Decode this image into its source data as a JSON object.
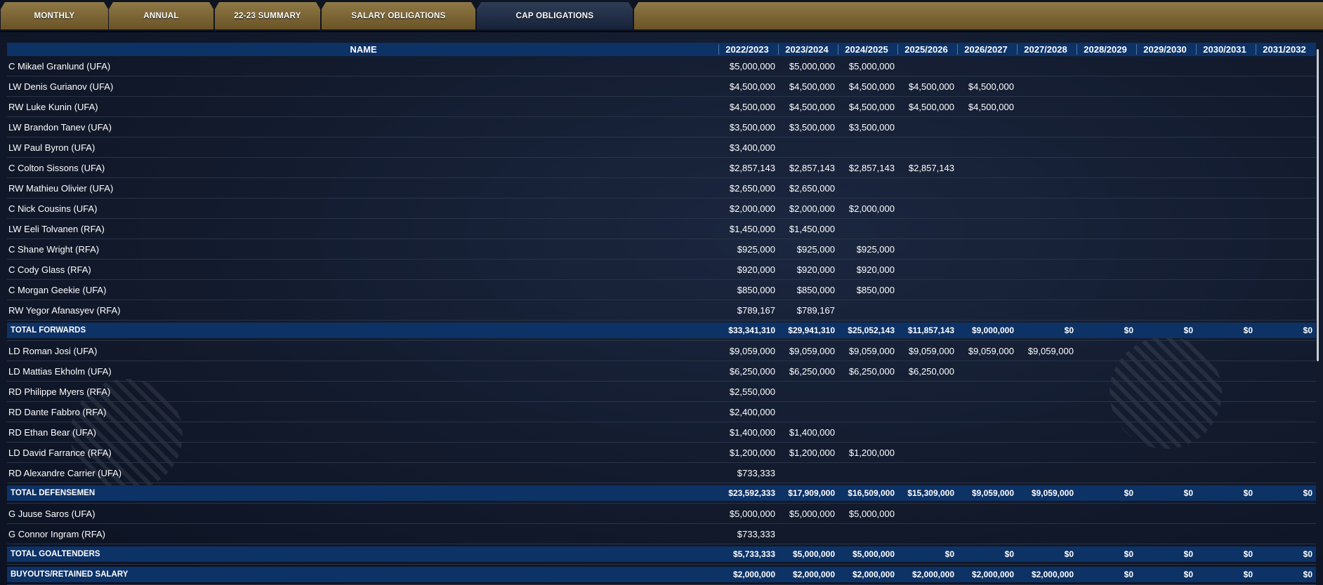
{
  "tabs": [
    {
      "label": "MONTHLY",
      "active": false
    },
    {
      "label": "ANNUAL",
      "active": false
    },
    {
      "label": "22-23 SUMMARY",
      "active": false
    },
    {
      "label": "SALARY OBLIGATIONS",
      "active": false
    },
    {
      "label": "CAP OBLIGATIONS",
      "active": true
    }
  ],
  "colors": {
    "tab_gold": "#8e7846",
    "header_blue": "#0d3266",
    "background": "#121a2c"
  },
  "table": {
    "headers": [
      "NAME",
      "2022/2023",
      "2023/2024",
      "2024/2025",
      "2025/2026",
      "2026/2027",
      "2027/2028",
      "2028/2029",
      "2029/2030",
      "2030/2031",
      "2031/2032"
    ],
    "rows": [
      {
        "type": "player",
        "name": "C Mikael Granlund (UFA)",
        "values": [
          "$5,000,000",
          "$5,000,000",
          "$5,000,000",
          "",
          "",
          "",
          "",
          "",
          "",
          ""
        ]
      },
      {
        "type": "player",
        "name": "LW Denis Gurianov (UFA)",
        "values": [
          "$4,500,000",
          "$4,500,000",
          "$4,500,000",
          "$4,500,000",
          "$4,500,000",
          "",
          "",
          "",
          "",
          ""
        ]
      },
      {
        "type": "player",
        "name": "RW Luke Kunin (UFA)",
        "values": [
          "$4,500,000",
          "$4,500,000",
          "$4,500,000",
          "$4,500,000",
          "$4,500,000",
          "",
          "",
          "",
          "",
          ""
        ]
      },
      {
        "type": "player",
        "name": "LW Brandon Tanev (UFA)",
        "values": [
          "$3,500,000",
          "$3,500,000",
          "$3,500,000",
          "",
          "",
          "",
          "",
          "",
          "",
          ""
        ]
      },
      {
        "type": "player",
        "name": "LW Paul Byron (UFA)",
        "values": [
          "$3,400,000",
          "",
          "",
          "",
          "",
          "",
          "",
          "",
          "",
          ""
        ]
      },
      {
        "type": "player",
        "name": "C Colton Sissons (UFA)",
        "values": [
          "$2,857,143",
          "$2,857,143",
          "$2,857,143",
          "$2,857,143",
          "",
          "",
          "",
          "",
          "",
          ""
        ]
      },
      {
        "type": "player",
        "name": "RW Mathieu Olivier (UFA)",
        "values": [
          "$2,650,000",
          "$2,650,000",
          "",
          "",
          "",
          "",
          "",
          "",
          "",
          ""
        ]
      },
      {
        "type": "player",
        "name": "C Nick Cousins (UFA)",
        "values": [
          "$2,000,000",
          "$2,000,000",
          "$2,000,000",
          "",
          "",
          "",
          "",
          "",
          "",
          ""
        ]
      },
      {
        "type": "player",
        "name": "LW Eeli Tolvanen (RFA)",
        "values": [
          "$1,450,000",
          "$1,450,000",
          "",
          "",
          "",
          "",
          "",
          "",
          "",
          ""
        ]
      },
      {
        "type": "player",
        "name": "C Shane Wright (RFA)",
        "values": [
          "$925,000",
          "$925,000",
          "$925,000",
          "",
          "",
          "",
          "",
          "",
          "",
          ""
        ]
      },
      {
        "type": "player",
        "name": "C Cody Glass (RFA)",
        "values": [
          "$920,000",
          "$920,000",
          "$920,000",
          "",
          "",
          "",
          "",
          "",
          "",
          ""
        ]
      },
      {
        "type": "player",
        "name": "C Morgan Geekie (UFA)",
        "values": [
          "$850,000",
          "$850,000",
          "$850,000",
          "",
          "",
          "",
          "",
          "",
          "",
          ""
        ]
      },
      {
        "type": "player",
        "name": "RW Yegor Afanasyev (RFA)",
        "values": [
          "$789,167",
          "$789,167",
          "",
          "",
          "",
          "",
          "",
          "",
          "",
          ""
        ]
      },
      {
        "type": "total",
        "name": "TOTAL FORWARDS",
        "values": [
          "$33,341,310",
          "$29,941,310",
          "$25,052,143",
          "$11,857,143",
          "$9,000,000",
          "$0",
          "$0",
          "$0",
          "$0",
          "$0"
        ]
      },
      {
        "type": "player",
        "name": "LD Roman Josi (UFA)",
        "values": [
          "$9,059,000",
          "$9,059,000",
          "$9,059,000",
          "$9,059,000",
          "$9,059,000",
          "$9,059,000",
          "",
          "",
          "",
          ""
        ]
      },
      {
        "type": "player",
        "name": "LD Mattias Ekholm (UFA)",
        "values": [
          "$6,250,000",
          "$6,250,000",
          "$6,250,000",
          "$6,250,000",
          "",
          "",
          "",
          "",
          "",
          ""
        ]
      },
      {
        "type": "player",
        "name": "RD Philippe Myers (RFA)",
        "values": [
          "$2,550,000",
          "",
          "",
          "",
          "",
          "",
          "",
          "",
          "",
          ""
        ]
      },
      {
        "type": "player",
        "name": "RD Dante Fabbro (RFA)",
        "values": [
          "$2,400,000",
          "",
          "",
          "",
          "",
          "",
          "",
          "",
          "",
          ""
        ]
      },
      {
        "type": "player",
        "name": "RD Ethan Bear (UFA)",
        "values": [
          "$1,400,000",
          "$1,400,000",
          "",
          "",
          "",
          "",
          "",
          "",
          "",
          ""
        ]
      },
      {
        "type": "player",
        "name": "LD David Farrance (RFA)",
        "values": [
          "$1,200,000",
          "$1,200,000",
          "$1,200,000",
          "",
          "",
          "",
          "",
          "",
          "",
          ""
        ]
      },
      {
        "type": "player",
        "name": "RD Alexandre Carrier (UFA)",
        "values": [
          "$733,333",
          "",
          "",
          "",
          "",
          "",
          "",
          "",
          "",
          ""
        ]
      },
      {
        "type": "total",
        "name": "TOTAL DEFENSEMEN",
        "values": [
          "$23,592,333",
          "$17,909,000",
          "$16,509,000",
          "$15,309,000",
          "$9,059,000",
          "$9,059,000",
          "$0",
          "$0",
          "$0",
          "$0"
        ]
      },
      {
        "type": "player",
        "name": "G Juuse Saros (UFA)",
        "values": [
          "$5,000,000",
          "$5,000,000",
          "$5,000,000",
          "",
          "",
          "",
          "",
          "",
          "",
          ""
        ]
      },
      {
        "type": "player",
        "name": "G Connor Ingram (RFA)",
        "values": [
          "$733,333",
          "",
          "",
          "",
          "",
          "",
          "",
          "",
          "",
          ""
        ]
      },
      {
        "type": "total",
        "name": "TOTAL GOALTENDERS",
        "values": [
          "$5,733,333",
          "$5,000,000",
          "$5,000,000",
          "$0",
          "$0",
          "$0",
          "$0",
          "$0",
          "$0",
          "$0"
        ]
      },
      {
        "type": "total",
        "name": "BUYOUTS/RETAINED SALARY",
        "values": [
          "$2,000,000",
          "$2,000,000",
          "$2,000,000",
          "$2,000,000",
          "$2,000,000",
          "$2,000,000",
          "$0",
          "$0",
          "$0",
          "$0"
        ]
      }
    ]
  }
}
